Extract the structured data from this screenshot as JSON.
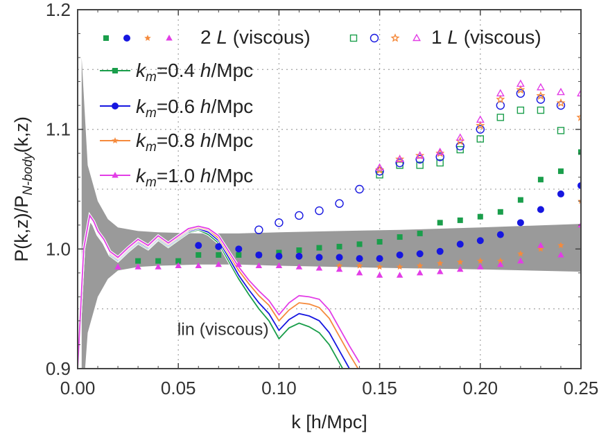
{
  "chart_data": {
    "type": "line",
    "title": "",
    "xlabel": "k [h/Mpc]",
    "ylabel": "P(k,z)/P_N-body(k,z)",
    "ylabel_parts": {
      "main": "P(k,z)/P",
      "sub": "N-body",
      "tail": "(k,z)"
    },
    "xlim": [
      0,
      0.25
    ],
    "ylim": [
      0.9,
      1.2
    ],
    "x_ticks": [
      0.0,
      0.05,
      0.1,
      0.15,
      0.2,
      0.25
    ],
    "x_tick_labels": [
      "0.00",
      "0.05",
      "0.10",
      "0.15",
      "0.20",
      "0.25"
    ],
    "y_ticks": [
      0.9,
      1.0,
      1.1,
      1.2
    ],
    "y_tick_labels": [
      "0.9",
      "1.0",
      "1.1",
      "1.2"
    ],
    "grid": true,
    "legend_placement": "top-left",
    "colors": {
      "green": "#1a9e4b",
      "blue": "#1616e0",
      "orange": "#f58a3c",
      "magenta": "#e23de6",
      "band": "#9a9a9a"
    },
    "band": {
      "x": [
        0.002,
        0.005,
        0.01,
        0.015,
        0.02,
        0.03,
        0.04,
        0.06,
        0.08,
        0.1,
        0.13,
        0.16,
        0.2,
        0.25
      ],
      "lower": [
        0.86,
        0.93,
        0.96,
        0.975,
        0.982,
        0.985,
        0.986,
        0.987,
        0.987,
        0.986,
        0.985,
        0.984,
        0.983,
        0.981
      ],
      "upper": [
        1.16,
        1.07,
        1.04,
        1.025,
        1.018,
        1.015,
        1.014,
        1.013,
        1.013,
        1.014,
        1.015,
        1.016,
        1.018,
        1.021
      ]
    },
    "annotation": {
      "text": "lin (viscous)",
      "x": 0.0495,
      "y": 0.928
    },
    "legend_left": {
      "text_main": "2 ",
      "text_italic": "L",
      "text_tail": " (viscous)"
    },
    "legend_right": {
      "text_main": "1 ",
      "text_italic": "L",
      "text_tail": " (viscous)"
    },
    "series": [
      {
        "name": "k_m=0.4 h/Mpc",
        "label_k": "k",
        "label_sub": "m",
        "label_val": "=0.4 ",
        "label_h": "h",
        "label_unit": "/Mpc",
        "color": "#1a9e4b",
        "marker": "square",
        "line_x": [
          0.0,
          0.003,
          0.006,
          0.008,
          0.01,
          0.013,
          0.016,
          0.02,
          0.025,
          0.03,
          0.035,
          0.04,
          0.045,
          0.05,
          0.055,
          0.06,
          0.065,
          0.07,
          0.075,
          0.08,
          0.085,
          0.09,
          0.095,
          0.1,
          0.105,
          0.11,
          0.115,
          0.12,
          0.125,
          0.13,
          0.135,
          0.14
        ],
        "line_y": [
          0.9,
          1.0,
          1.025,
          1.02,
          1.012,
          1.005,
          0.995,
          0.99,
          0.998,
          1.005,
          1.0,
          1.008,
          1.002,
          1.008,
          1.014,
          1.016,
          1.012,
          1.005,
          0.99,
          0.975,
          0.962,
          0.95,
          0.94,
          0.925,
          0.934,
          0.938,
          0.935,
          0.93,
          0.92,
          0.905,
          0.89,
          0.88
        ],
        "x2L": [
          0.03,
          0.04,
          0.05,
          0.06,
          0.07,
          0.08,
          0.09,
          0.1,
          0.11,
          0.12,
          0.13,
          0.14,
          0.15,
          0.16,
          0.17,
          0.18,
          0.19,
          0.2,
          0.21,
          0.22,
          0.23,
          0.24,
          0.25
        ],
        "y2L": [
          0.99,
          0.99,
          0.99,
          0.995,
          0.995,
          0.995,
          0.995,
          0.997,
          0.999,
          1.001,
          1.002,
          1.004,
          1.006,
          1.01,
          1.013,
          1.022,
          1.024,
          1.027,
          1.031,
          1.041,
          1.058,
          1.065,
          1.081
        ],
        "x1L": [
          0.15,
          0.16,
          0.17,
          0.18,
          0.19,
          0.2,
          0.21,
          0.22,
          0.23,
          0.24
        ],
        "y1L": [
          1.062,
          1.07,
          1.07,
          1.072,
          1.083,
          1.092,
          1.11,
          1.116,
          1.116,
          1.099
        ]
      },
      {
        "name": "k_m=0.6 h/Mpc",
        "label_k": "k",
        "label_sub": "m",
        "label_val": "=0.6 ",
        "label_h": "h",
        "label_unit": "/Mpc",
        "color": "#1616e0",
        "marker": "circle",
        "line_x": [
          0.0,
          0.003,
          0.006,
          0.008,
          0.01,
          0.013,
          0.016,
          0.02,
          0.025,
          0.03,
          0.035,
          0.04,
          0.045,
          0.05,
          0.055,
          0.06,
          0.065,
          0.07,
          0.075,
          0.08,
          0.085,
          0.09,
          0.095,
          0.1,
          0.105,
          0.11,
          0.115,
          0.12,
          0.125,
          0.13,
          0.135,
          0.14
        ],
        "line_y": [
          0.9,
          1.0,
          1.026,
          1.021,
          1.013,
          1.006,
          0.996,
          0.991,
          0.999,
          1.006,
          1.001,
          1.009,
          1.003,
          1.009,
          1.015,
          1.017,
          1.014,
          1.007,
          0.993,
          0.978,
          0.966,
          0.955,
          0.946,
          0.932,
          0.941,
          0.946,
          0.944,
          0.94,
          0.93,
          0.915,
          0.9,
          0.888
        ],
        "x2L": [
          0.06,
          0.07,
          0.08,
          0.09,
          0.1,
          0.11,
          0.12,
          0.13,
          0.14,
          0.15,
          0.16,
          0.17,
          0.18,
          0.19,
          0.2,
          0.21,
          0.22,
          0.23,
          0.24,
          0.25
        ],
        "y2L": [
          1.003,
          1.002,
          1.0,
          0.995,
          0.994,
          0.994,
          0.993,
          0.993,
          0.992,
          0.992,
          0.995,
          0.996,
          0.998,
          1.004,
          1.007,
          1.012,
          1.022,
          1.033,
          1.046,
          1.053
        ],
        "x1L": [
          0.09,
          0.1,
          0.11,
          0.12,
          0.13,
          0.14,
          0.15,
          0.16,
          0.17,
          0.18,
          0.19,
          0.2,
          0.21,
          0.22,
          0.23,
          0.24
        ],
        "y1L": [
          1.016,
          1.022,
          1.028,
          1.032,
          1.038,
          1.05,
          1.065,
          1.072,
          1.075,
          1.077,
          1.086,
          1.1,
          1.12,
          1.13,
          1.125,
          1.12
        ]
      },
      {
        "name": "k_m=0.8 h/Mpc",
        "label_k": "k",
        "label_sub": "m",
        "label_val": "=0.8 ",
        "label_h": "h",
        "label_unit": "/Mpc",
        "color": "#f58a3c",
        "marker": "star",
        "line_x": [
          0.0,
          0.003,
          0.006,
          0.008,
          0.01,
          0.013,
          0.016,
          0.02,
          0.025,
          0.03,
          0.035,
          0.04,
          0.045,
          0.05,
          0.055,
          0.06,
          0.065,
          0.07,
          0.075,
          0.08,
          0.085,
          0.09,
          0.095,
          0.1,
          0.105,
          0.11,
          0.115,
          0.12,
          0.125,
          0.13,
          0.135,
          0.14
        ],
        "line_y": [
          0.9,
          1.0,
          1.027,
          1.022,
          1.014,
          1.007,
          0.997,
          0.992,
          1.0,
          1.007,
          1.002,
          1.01,
          1.004,
          1.01,
          1.016,
          1.018,
          1.016,
          1.009,
          0.996,
          0.982,
          0.971,
          0.961,
          0.953,
          0.94,
          0.949,
          0.955,
          0.954,
          0.951,
          0.942,
          0.927,
          0.912,
          0.898
        ],
        "x2L": [
          0.13,
          0.14,
          0.15,
          0.16,
          0.17,
          0.18,
          0.19,
          0.2,
          0.21,
          0.22,
          0.23,
          0.24,
          0.25
        ],
        "y2L": [
          0.986,
          0.986,
          0.985,
          0.985,
          0.986,
          0.988,
          0.989,
          0.99,
          0.99,
          0.996,
          1.0,
          1.003,
          1.04
        ],
        "x1L": [
          0.15,
          0.16,
          0.17,
          0.18,
          0.19,
          0.2,
          0.21,
          0.22,
          0.23,
          0.24,
          0.25
        ],
        "y1L": [
          1.066,
          1.075,
          1.078,
          1.08,
          1.09,
          1.103,
          1.125,
          1.133,
          1.128,
          1.122,
          1.11
        ]
      },
      {
        "name": "k_m=1.0 h/Mpc",
        "label_k": "k",
        "label_sub": "m",
        "label_val": "=1.0 ",
        "label_h": "h",
        "label_unit": "/Mpc",
        "color": "#e23de6",
        "marker": "triangle",
        "line_x": [
          0.0,
          0.003,
          0.006,
          0.008,
          0.01,
          0.013,
          0.016,
          0.02,
          0.025,
          0.03,
          0.035,
          0.04,
          0.045,
          0.05,
          0.055,
          0.06,
          0.065,
          0.07,
          0.075,
          0.08,
          0.085,
          0.09,
          0.095,
          0.1,
          0.105,
          0.11,
          0.115,
          0.12,
          0.125,
          0.13,
          0.135,
          0.14
        ],
        "line_y": [
          0.9,
          1.0,
          1.028,
          1.023,
          1.015,
          1.008,
          0.998,
          0.993,
          1.001,
          1.008,
          1.003,
          1.011,
          1.005,
          1.011,
          1.017,
          1.019,
          1.017,
          1.011,
          0.998,
          0.985,
          0.974,
          0.965,
          0.957,
          0.945,
          0.955,
          0.961,
          0.96,
          0.958,
          0.949,
          0.934,
          0.919,
          0.905
        ],
        "x2L": [
          0.02,
          0.03,
          0.04,
          0.05,
          0.06,
          0.07,
          0.08,
          0.09,
          0.1,
          0.11,
          0.12,
          0.13,
          0.14,
          0.15,
          0.16,
          0.17,
          0.18,
          0.19,
          0.2,
          0.21,
          0.22,
          0.23,
          0.24,
          0.25
        ],
        "y2L": [
          0.985,
          0.985,
          0.985,
          0.986,
          0.986,
          0.987,
          0.987,
          0.986,
          0.986,
          0.985,
          0.984,
          0.983,
          0.98,
          0.978,
          0.978,
          0.98,
          0.981,
          0.983,
          0.985,
          0.987,
          0.99,
          1.003,
          0.995,
          1.02
        ],
        "x1L": [
          0.15,
          0.16,
          0.17,
          0.18,
          0.19,
          0.2,
          0.21,
          0.22,
          0.23,
          0.24,
          0.25
        ],
        "y1L": [
          1.068,
          1.075,
          1.078,
          1.081,
          1.093,
          1.108,
          1.13,
          1.138,
          1.135,
          1.131,
          1.13
        ]
      }
    ]
  }
}
